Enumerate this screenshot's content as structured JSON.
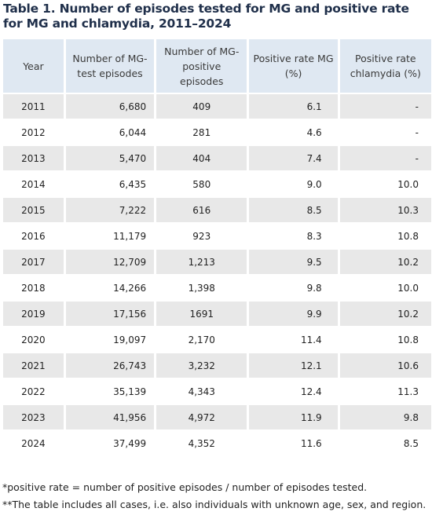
{
  "title": "Table 1. Number of episodes tested for MG and positive rate for MG and chlamydia, 2011–2024",
  "table": {
    "headers": [
      "Year",
      "Number of MG-test episodes",
      "Number of MG-positive episodes",
      "Positive rate MG (%)",
      "Positive rate chlamydia (%)"
    ],
    "rows": [
      [
        "2011",
        "6,680",
        "409",
        "6.1",
        "-"
      ],
      [
        "2012",
        "6,044",
        "281",
        "4.6",
        "-"
      ],
      [
        "2013",
        "5,470",
        "404",
        "7.4",
        "-"
      ],
      [
        "2014",
        "6,435",
        "580",
        "9.0",
        "10.0"
      ],
      [
        "2015",
        "7,222",
        "616",
        "8.5",
        "10.3"
      ],
      [
        "2016",
        "11,179",
        "923",
        "8.3",
        "10.8"
      ],
      [
        "2017",
        "12,709",
        "1,213",
        "9.5",
        "10.2"
      ],
      [
        "2018",
        "14,266",
        "1,398",
        "9.8",
        "10.0"
      ],
      [
        "2019",
        "17,156",
        "1691",
        "9.9",
        "10.2"
      ],
      [
        "2020",
        "19,097",
        "2,170",
        "11.4",
        "10.8"
      ],
      [
        "2021",
        "26,743",
        "3,232",
        "12.1",
        "10.6"
      ],
      [
        "2022",
        "35,139",
        "4,343",
        "12.4",
        "11.3"
      ],
      [
        "2023",
        "41,956",
        "4,972",
        "11.9",
        "9.8"
      ],
      [
        "2024",
        "37,499",
        "4,352",
        "11.6",
        "8.5"
      ]
    ]
  },
  "footnotes": [
    "*positive rate = number of positive episodes / number of episodes tested.",
    "**The table includes all cases, i.e. also individuals with unknown age, sex, and region."
  ]
}
